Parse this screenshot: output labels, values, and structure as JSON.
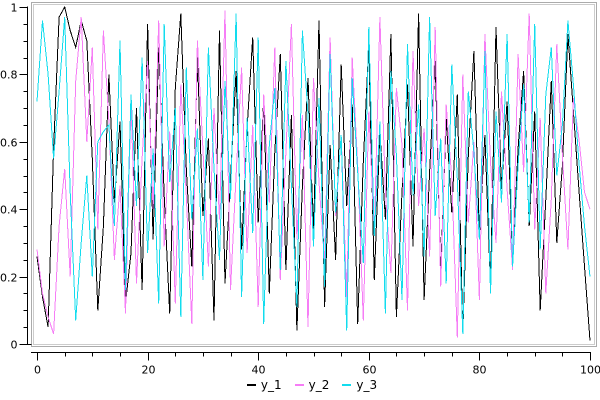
{
  "figure": {
    "background": "#ffffff",
    "frame_color_outer": "#ababab",
    "frame_color_inner": "#cccccc",
    "axis_color": "#000000",
    "text_color": "#000000"
  },
  "chart_data": {
    "type": "line",
    "title": "",
    "xlabel": "",
    "ylabel": "",
    "xlim": [
      0,
      100
    ],
    "ylim": [
      0,
      1
    ],
    "grid": false,
    "legend_position": "bottom-center",
    "x_major_ticks": [
      0,
      20,
      40,
      60,
      80,
      100
    ],
    "x_tick_labels": [
      "0",
      "20",
      "40",
      "60",
      "80",
      "100"
    ],
    "x_minor_tick_step": 5,
    "y_major_ticks": [
      0,
      0.2,
      0.4,
      0.6,
      0.8,
      1
    ],
    "y_tick_labels": [
      "0",
      "0.2",
      "0.4",
      "0.6",
      "0.8",
      "1"
    ],
    "y_minor_tick_step": 0.05,
    "x": [
      0,
      1,
      2,
      3,
      4,
      5,
      6,
      7,
      8,
      9,
      10,
      11,
      12,
      13,
      14,
      15,
      16,
      17,
      18,
      19,
      20,
      21,
      22,
      23,
      24,
      25,
      26,
      27,
      28,
      29,
      30,
      31,
      32,
      33,
      34,
      35,
      36,
      37,
      38,
      39,
      40,
      41,
      42,
      43,
      44,
      45,
      46,
      47,
      48,
      49,
      50,
      51,
      52,
      53,
      54,
      55,
      56,
      57,
      58,
      59,
      60,
      61,
      62,
      63,
      64,
      65,
      66,
      67,
      68,
      69,
      70,
      71,
      72,
      73,
      74,
      75,
      76,
      77,
      78,
      79,
      80,
      81,
      82,
      83,
      84,
      85,
      86,
      87,
      88,
      89,
      90,
      91,
      92,
      93,
      94,
      95,
      96,
      97,
      98,
      99,
      100
    ],
    "series": [
      {
        "name": "y_1",
        "color": "#000000",
        "values": [
          0.26,
          0.14,
          0.05,
          0.58,
          0.97,
          1.0,
          0.93,
          0.88,
          0.96,
          0.9,
          0.55,
          0.1,
          0.35,
          0.8,
          0.42,
          0.66,
          0.12,
          0.27,
          0.7,
          0.16,
          0.95,
          0.31,
          0.88,
          0.44,
          0.09,
          0.76,
          0.98,
          0.52,
          0.23,
          0.85,
          0.38,
          0.61,
          0.07,
          0.93,
          0.18,
          0.49,
          0.81,
          0.28,
          0.64,
          0.91,
          0.36,
          0.73,
          0.15,
          0.57,
          0.86,
          0.22,
          0.68,
          0.04,
          0.47,
          0.79,
          0.33,
          0.96,
          0.11,
          0.59,
          0.25,
          0.83,
          0.41,
          0.71,
          0.06,
          0.54,
          0.89,
          0.19,
          0.63,
          0.37,
          0.92,
          0.08,
          0.45,
          0.77,
          0.29,
          0.98,
          0.13,
          0.51,
          0.84,
          0.21,
          0.67,
          0.39,
          0.74,
          0.03,
          0.56,
          0.87,
          0.32,
          0.62,
          0.17,
          0.94,
          0.46,
          0.72,
          0.24,
          0.58,
          0.81,
          0.35,
          0.69,
          0.1,
          0.43,
          0.78,
          0.3,
          0.53,
          0.92,
          0.69,
          0.46,
          0.23,
          0.01
        ]
      },
      {
        "name": "y_2",
        "color": "#f67df6",
        "values": [
          0.28,
          0.15,
          0.08,
          0.03,
          0.35,
          0.52,
          0.2,
          0.78,
          0.97,
          0.6,
          0.88,
          0.34,
          0.93,
          0.66,
          0.25,
          0.47,
          0.09,
          0.72,
          0.18,
          0.55,
          0.84,
          0.4,
          0.96,
          0.29,
          0.63,
          0.12,
          0.77,
          0.44,
          0.06,
          0.9,
          0.58,
          0.23,
          0.7,
          0.37,
          0.99,
          0.16,
          0.5,
          0.82,
          0.27,
          0.65,
          0.11,
          0.74,
          0.42,
          0.88,
          0.19,
          0.57,
          0.95,
          0.31,
          0.68,
          0.05,
          0.79,
          0.48,
          0.24,
          0.91,
          0.38,
          0.62,
          0.14,
          0.85,
          0.53,
          0.07,
          0.69,
          0.33,
          0.97,
          0.45,
          0.21,
          0.76,
          0.59,
          0.1,
          0.87,
          0.41,
          0.64,
          0.26,
          0.94,
          0.17,
          0.71,
          0.49,
          0.02,
          0.8,
          0.36,
          0.6,
          0.13,
          0.92,
          0.54,
          0.3,
          0.75,
          0.46,
          0.22,
          0.86,
          0.51,
          0.98,
          0.34,
          0.67,
          0.15,
          0.43,
          0.89,
          0.56,
          0.28,
          0.73,
          0.61,
          0.45,
          0.4
        ]
      },
      {
        "name": "y_3",
        "color": "#12dcee",
        "values": [
          0.72,
          0.96,
          0.8,
          0.55,
          0.75,
          0.97,
          0.45,
          0.07,
          0.3,
          0.5,
          0.2,
          0.6,
          0.63,
          0.65,
          0.35,
          0.9,
          0.16,
          0.74,
          0.41,
          0.85,
          0.27,
          0.58,
          0.12,
          0.95,
          0.48,
          0.7,
          0.08,
          0.82,
          0.37,
          0.64,
          0.19,
          0.88,
          0.52,
          0.25,
          0.78,
          0.43,
          0.98,
          0.14,
          0.67,
          0.33,
          0.91,
          0.06,
          0.59,
          0.76,
          0.22,
          0.84,
          0.47,
          0.11,
          0.93,
          0.68,
          0.29,
          0.73,
          0.17,
          0.86,
          0.39,
          0.62,
          0.04,
          0.79,
          0.51,
          0.24,
          0.94,
          0.32,
          0.66,
          0.09,
          0.81,
          0.56,
          0.13,
          0.89,
          0.44,
          0.71,
          0.26,
          0.97,
          0.38,
          0.61,
          0.18,
          0.83,
          0.49,
          0.03,
          0.75,
          0.57,
          0.31,
          0.87,
          0.15,
          0.69,
          0.42,
          0.92,
          0.23,
          0.53,
          0.77,
          0.36,
          0.95,
          0.28,
          0.74,
          0.88,
          0.5,
          0.65,
          0.96,
          0.77,
          0.54,
          0.35,
          0.2
        ]
      }
    ]
  }
}
